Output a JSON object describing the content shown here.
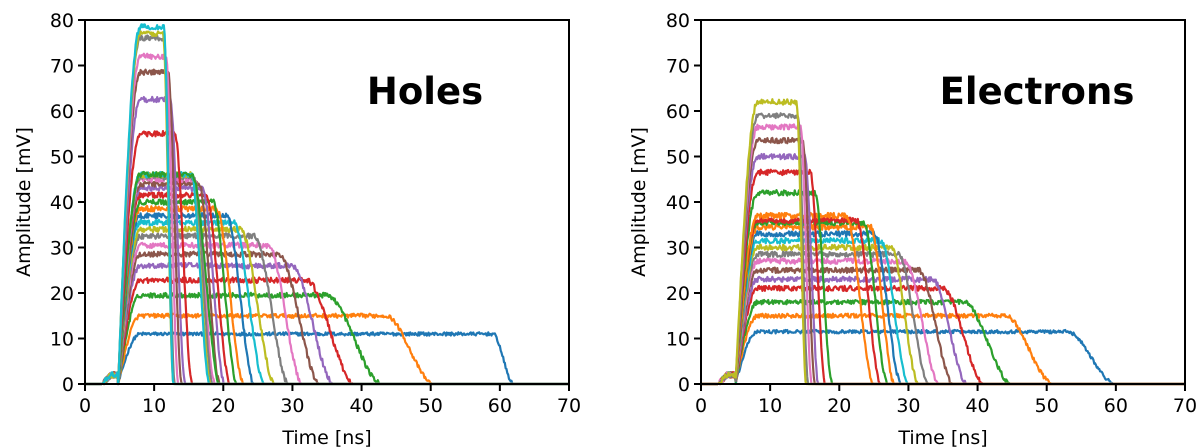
{
  "chart_data": [
    {
      "type": "line",
      "title": "Holes",
      "xlabel": "Time [ns]",
      "ylabel": "Amplitude [mV]",
      "xlim": [
        0,
        70
      ],
      "ylim": [
        0,
        80
      ],
      "xticks": [
        0,
        10,
        20,
        30,
        40,
        50,
        60,
        70
      ],
      "yticks": [
        0,
        10,
        20,
        30,
        40,
        50,
        60,
        70,
        80
      ],
      "grid": false,
      "rise_start": 4.8,
      "series": [
        {
          "color": "#1f77b4",
          "plateau": 11,
          "end": 62,
          "fall_width": 3
        },
        {
          "color": "#ff7f0e",
          "plateau": 15,
          "end": 50.5,
          "fall_width": 7
        },
        {
          "color": "#2ca02c",
          "plateau": 19.5,
          "end": 43,
          "fall_width": 8
        },
        {
          "color": "#d62728",
          "plateau": 22.8,
          "end": 39,
          "fall_width": 7
        },
        {
          "color": "#9467bd",
          "plateau": 26,
          "end": 36,
          "fall_width": 6
        },
        {
          "color": "#8c564b",
          "plateau": 28.5,
          "end": 34,
          "fall_width": 6
        },
        {
          "color": "#e377c2",
          "plateau": 30.5,
          "end": 31.5,
          "fall_width": 5
        },
        {
          "color": "#7f7f7f",
          "plateau": 32.5,
          "end": 29.5,
          "fall_width": 5
        },
        {
          "color": "#bcbd22",
          "plateau": 34,
          "end": 27.5,
          "fall_width": 5
        },
        {
          "color": "#17becf",
          "plateau": 35.5,
          "end": 26,
          "fall_width": 4.5
        },
        {
          "color": "#1f77b4",
          "plateau": 37,
          "end": 24.5,
          "fall_width": 4
        },
        {
          "color": "#ff7f0e",
          "plateau": 38.5,
          "end": 23,
          "fall_width": 4
        },
        {
          "color": "#2ca02c",
          "plateau": 40,
          "end": 22,
          "fall_width": 3.5
        },
        {
          "color": "#d62728",
          "plateau": 41.5,
          "end": 21,
          "fall_width": 3.5
        },
        {
          "color": "#9467bd",
          "plateau": 43,
          "end": 20.2,
          "fall_width": 3.2
        },
        {
          "color": "#8c564b",
          "plateau": 44,
          "end": 19.5,
          "fall_width": 3
        },
        {
          "color": "#e377c2",
          "plateau": 45,
          "end": 18.8,
          "fall_width": 3
        },
        {
          "color": "#7f7f7f",
          "plateau": 45.5,
          "end": 18.5,
          "fall_width": 2.8
        },
        {
          "color": "#bcbd22",
          "plateau": 46,
          "end": 18.2,
          "fall_width": 2.8
        },
        {
          "color": "#17becf",
          "plateau": 46,
          "end": 18,
          "fall_width": 2.6
        },
        {
          "color": "#2ca02c",
          "plateau": 46,
          "end": 19.5,
          "fall_width": 4
        },
        {
          "color": "#d62728",
          "plateau": 55,
          "end": 15.5,
          "fall_width": 2.5
        },
        {
          "color": "#9467bd",
          "plateau": 62.5,
          "end": 14.5,
          "fall_width": 2.2
        },
        {
          "color": "#8c564b",
          "plateau": 68.5,
          "end": 14,
          "fall_width": 2
        },
        {
          "color": "#e377c2",
          "plateau": 72,
          "end": 13.5,
          "fall_width": 1.8
        },
        {
          "color": "#7f7f7f",
          "plateau": 76,
          "end": 13,
          "fall_width": 1.6
        },
        {
          "color": "#bcbd22",
          "plateau": 77,
          "end": 12.8,
          "fall_width": 1.5
        },
        {
          "color": "#17becf",
          "plateau": 78.5,
          "end": 12.8,
          "fall_width": 1.4
        }
      ]
    },
    {
      "type": "line",
      "title": "Electrons",
      "xlabel": "Time [ns]",
      "ylabel": "Amplitude [mV]",
      "xlim": [
        0,
        70
      ],
      "ylim": [
        0,
        80
      ],
      "xticks": [
        0,
        10,
        20,
        30,
        40,
        50,
        60,
        70
      ],
      "yticks": [
        0,
        10,
        20,
        30,
        40,
        50,
        60,
        70,
        80
      ],
      "grid": false,
      "rise_start": 5,
      "series": [
        {
          "color": "#1f77b4",
          "plateau": 11.5,
          "end": 60,
          "fall_width": 7
        },
        {
          "color": "#ff7f0e",
          "plateau": 15,
          "end": 51,
          "fall_width": 7
        },
        {
          "color": "#2ca02c",
          "plateau": 18,
          "end": 45,
          "fall_width": 7
        },
        {
          "color": "#d62728",
          "plateau": 21,
          "end": 41,
          "fall_width": 6
        },
        {
          "color": "#9467bd",
          "plateau": 23,
          "end": 38.5,
          "fall_width": 5
        },
        {
          "color": "#8c564b",
          "plateau": 25,
          "end": 36.5,
          "fall_width": 5
        },
        {
          "color": "#e377c2",
          "plateau": 27,
          "end": 34.5,
          "fall_width": 5
        },
        {
          "color": "#7f7f7f",
          "plateau": 28.5,
          "end": 33,
          "fall_width": 4.5
        },
        {
          "color": "#bcbd22",
          "plateau": 30,
          "end": 31.5,
          "fall_width": 4
        },
        {
          "color": "#17becf",
          "plateau": 31.5,
          "end": 30,
          "fall_width": 4
        },
        {
          "color": "#1f77b4",
          "plateau": 33,
          "end": 29,
          "fall_width": 4
        },
        {
          "color": "#ff7f0e",
          "plateau": 34.5,
          "end": 28,
          "fall_width": 3.5
        },
        {
          "color": "#2ca02c",
          "plateau": 35.5,
          "end": 27,
          "fall_width": 3.5
        },
        {
          "color": "#d62728",
          "plateau": 36,
          "end": 26,
          "fall_width": 3.5
        },
        {
          "color": "#ff7f0e",
          "plateau": 37,
          "end": 25,
          "fall_width": 4
        },
        {
          "color": "#2ca02c",
          "plateau": 42,
          "end": 19,
          "fall_width": 2.5
        },
        {
          "color": "#d62728",
          "plateau": 46.5,
          "end": 18,
          "fall_width": 2.2
        },
        {
          "color": "#9467bd",
          "plateau": 50,
          "end": 17,
          "fall_width": 2
        },
        {
          "color": "#8c564b",
          "plateau": 53.5,
          "end": 16.5,
          "fall_width": 1.8
        },
        {
          "color": "#e377c2",
          "plateau": 56.5,
          "end": 16,
          "fall_width": 1.6
        },
        {
          "color": "#7f7f7f",
          "plateau": 59,
          "end": 15.5,
          "fall_width": 1.5
        },
        {
          "color": "#bcbd22",
          "plateau": 62,
          "end": 15.2,
          "fall_width": 1.4
        }
      ]
    }
  ]
}
